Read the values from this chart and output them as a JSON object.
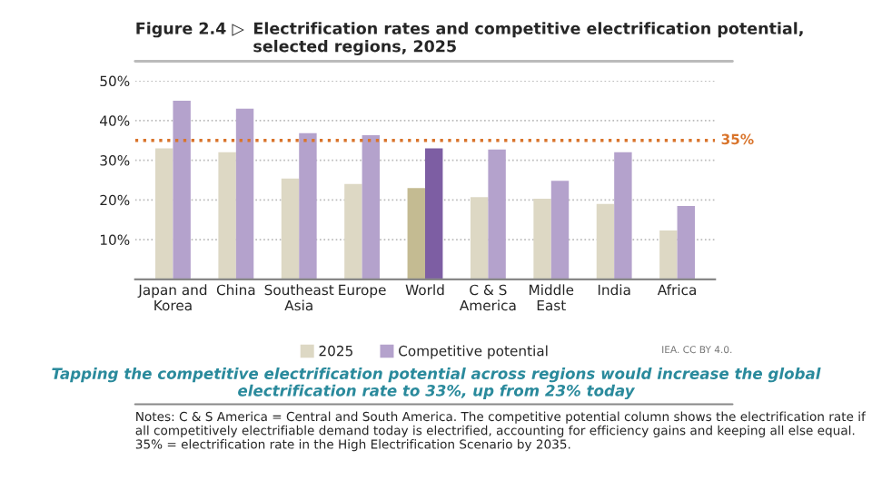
{
  "chart_data": {
    "type": "bar",
    "title": "Electrification rates and competitive electrification potential, selected regions, 2025",
    "categories": [
      "Japan and\nKorea",
      "China",
      "Southeast\nAsia",
      "Europe",
      "World",
      "C & S\nAmerica",
      "Middle\nEast",
      "India",
      "Africa"
    ],
    "series": [
      {
        "name": "2025",
        "color": "#ddd8c4",
        "colors": [
          "#ddd8c4",
          "#ddd8c4",
          "#ddd8c4",
          "#ddd8c4",
          "#c4bb92",
          "#ddd8c4",
          "#ddd8c4",
          "#ddd8c4",
          "#ddd8c4"
        ],
        "values": [
          33,
          32,
          25.4,
          24,
          23,
          20.7,
          20.3,
          19,
          12.3
        ]
      },
      {
        "name": "Competitive potential",
        "color": "#b4a2cc",
        "colors": [
          "#b4a2cc",
          "#b4a2cc",
          "#b4a2cc",
          "#b4a2cc",
          "#7d5ea3",
          "#b4a2cc",
          "#b4a2cc",
          "#b4a2cc",
          "#b4a2cc"
        ],
        "values": [
          45,
          43,
          36.8,
          36.3,
          33,
          32.7,
          24.8,
          32,
          18.5
        ]
      }
    ],
    "ylim": [
      0,
      50
    ],
    "yticks": [
      {
        "value": 10,
        "label": "10%"
      },
      {
        "value": 20,
        "label": "20%"
      },
      {
        "value": 30,
        "label": "30%"
      },
      {
        "value": 40,
        "label": "40%"
      },
      {
        "value": 50,
        "label": "50%"
      }
    ],
    "ref_lines": [
      {
        "axis": "y",
        "value": 35,
        "label": "35%",
        "color": "#d9742b",
        "line_style": "dotted"
      }
    ],
    "grid": "y",
    "legend": "bottom",
    "annotations": [
      "Figure 2.4 ▷",
      "IEA. CC BY 4.0.",
      "Tapping the competitive electrification potential across regions would increase the global electrification rate to 33%, up from 23% today",
      "Notes: C & S America = Central and South America. The competitive potential column shows the electrification rate if all competitively electrifiable demand today is electrified, accounting for efficiency gains and keeping all else equal. 35% = electrification rate in the High Electrification Scenario by 2035."
    ]
  }
}
